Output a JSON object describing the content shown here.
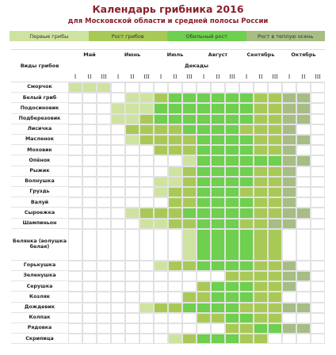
{
  "header": {
    "title": "Календарь грибника 2016",
    "subtitle": "для Московской области и средней полосы России"
  },
  "legend": [
    {
      "label": "Первые грибы",
      "color": "#cfe3a0"
    },
    {
      "label": "Рост грибов",
      "color": "#a9c957"
    },
    {
      "label": "Обильный рост",
      "color": "#6fcf4e"
    },
    {
      "label": "Рост в теплую осень",
      "color": "#a6bd84"
    }
  ],
  "table": {
    "species_header": "Виды грибов",
    "decades_header": "Декады",
    "months": [
      "Май",
      "Июнь",
      "Июль",
      "Август",
      "Сентябрь",
      "Октябрь"
    ],
    "decades": [
      "I",
      "II",
      "III"
    ],
    "rows": [
      {
        "name": "Сморчок",
        "cells": [
          1,
          1,
          1,
          0,
          0,
          0,
          0,
          0,
          0,
          0,
          0,
          0,
          0,
          0,
          0,
          0,
          0,
          0
        ]
      },
      {
        "name": "Белый гриб",
        "cells": [
          0,
          0,
          0,
          0,
          1,
          1,
          2,
          3,
          3,
          3,
          3,
          3,
          3,
          2,
          2,
          4,
          4,
          0
        ]
      },
      {
        "name": "Подосиновик",
        "cells": [
          0,
          0,
          0,
          1,
          1,
          1,
          3,
          3,
          3,
          3,
          3,
          3,
          3,
          2,
          2,
          4,
          4,
          0
        ]
      },
      {
        "name": "Подберезовик",
        "cells": [
          0,
          0,
          0,
          1,
          1,
          2,
          3,
          3,
          3,
          3,
          3,
          3,
          3,
          2,
          2,
          4,
          4,
          0
        ]
      },
      {
        "name": "Лисичка",
        "cells": [
          0,
          0,
          0,
          0,
          2,
          2,
          2,
          2,
          3,
          3,
          3,
          3,
          2,
          2,
          2,
          4,
          0,
          0
        ]
      },
      {
        "name": "Масленок",
        "cells": [
          0,
          0,
          0,
          0,
          1,
          2,
          2,
          2,
          2,
          3,
          3,
          3,
          3,
          2,
          2,
          4,
          4,
          0
        ]
      },
      {
        "name": "Моховик",
        "cells": [
          0,
          0,
          0,
          0,
          0,
          0,
          2,
          2,
          2,
          3,
          3,
          3,
          3,
          2,
          2,
          4,
          0,
          0
        ]
      },
      {
        "name": "Опёнок",
        "cells": [
          0,
          0,
          0,
          0,
          0,
          0,
          0,
          0,
          1,
          3,
          3,
          3,
          3,
          3,
          3,
          4,
          4,
          0
        ]
      },
      {
        "name": "Рыжик",
        "cells": [
          0,
          0,
          0,
          0,
          0,
          0,
          0,
          1,
          2,
          3,
          3,
          3,
          3,
          2,
          2,
          4,
          0,
          0
        ]
      },
      {
        "name": "Волнушка",
        "cells": [
          0,
          0,
          0,
          0,
          0,
          0,
          1,
          1,
          2,
          3,
          3,
          3,
          3,
          2,
          2,
          4,
          0,
          0
        ]
      },
      {
        "name": "Груздь",
        "cells": [
          0,
          0,
          0,
          0,
          0,
          0,
          1,
          2,
          2,
          3,
          3,
          3,
          2,
          2,
          2,
          4,
          0,
          0
        ]
      },
      {
        "name": "Валуй",
        "cells": [
          0,
          0,
          0,
          0,
          0,
          0,
          0,
          2,
          2,
          3,
          3,
          3,
          3,
          2,
          2,
          4,
          0,
          0
        ]
      },
      {
        "name": "Сыроежка",
        "cells": [
          0,
          0,
          0,
          0,
          1,
          2,
          2,
          2,
          3,
          3,
          3,
          3,
          3,
          2,
          2,
          4,
          4,
          0
        ]
      },
      {
        "name": "Шампиньон",
        "cells": [
          0,
          0,
          0,
          0,
          0,
          1,
          1,
          2,
          2,
          3,
          3,
          3,
          2,
          2,
          4,
          4,
          0,
          0
        ]
      },
      {
        "name": "Белянка (волушка белая)",
        "cells": [
          0,
          0,
          0,
          0,
          0,
          0,
          0,
          0,
          1,
          3,
          3,
          3,
          3,
          2,
          2,
          0,
          0,
          0
        ]
      },
      {
        "name": "Горькушка",
        "cells": [
          0,
          0,
          0,
          0,
          0,
          0,
          1,
          2,
          2,
          3,
          3,
          3,
          3,
          2,
          2,
          4,
          0,
          0
        ]
      },
      {
        "name": "Зеленушка",
        "cells": [
          0,
          0,
          0,
          0,
          0,
          0,
          0,
          0,
          0,
          0,
          0,
          2,
          2,
          2,
          2,
          4,
          4,
          0
        ]
      },
      {
        "name": "Серушка",
        "cells": [
          0,
          0,
          0,
          0,
          0,
          0,
          0,
          0,
          0,
          2,
          3,
          3,
          3,
          2,
          2,
          4,
          0,
          0
        ]
      },
      {
        "name": "Козляк",
        "cells": [
          0,
          0,
          0,
          0,
          0,
          0,
          0,
          0,
          2,
          2,
          3,
          3,
          3,
          2,
          2,
          0,
          0,
          0
        ]
      },
      {
        "name": "Дождевик",
        "cells": [
          0,
          0,
          0,
          0,
          0,
          1,
          2,
          2,
          3,
          3,
          3,
          3,
          2,
          2,
          2,
          4,
          4,
          0
        ]
      },
      {
        "name": "Колпак",
        "cells": [
          0,
          0,
          0,
          0,
          0,
          0,
          0,
          0,
          0,
          2,
          2,
          3,
          3,
          2,
          2,
          0,
          0,
          0
        ]
      },
      {
        "name": "Рядовка",
        "cells": [
          0,
          0,
          0,
          0,
          0,
          0,
          0,
          0,
          0,
          0,
          0,
          2,
          2,
          3,
          3,
          4,
          4,
          0
        ]
      },
      {
        "name": "Скрипица",
        "cells": [
          0,
          0,
          0,
          0,
          0,
          0,
          0,
          1,
          2,
          3,
          3,
          3,
          2,
          2,
          0,
          0,
          0,
          0
        ]
      }
    ]
  }
}
